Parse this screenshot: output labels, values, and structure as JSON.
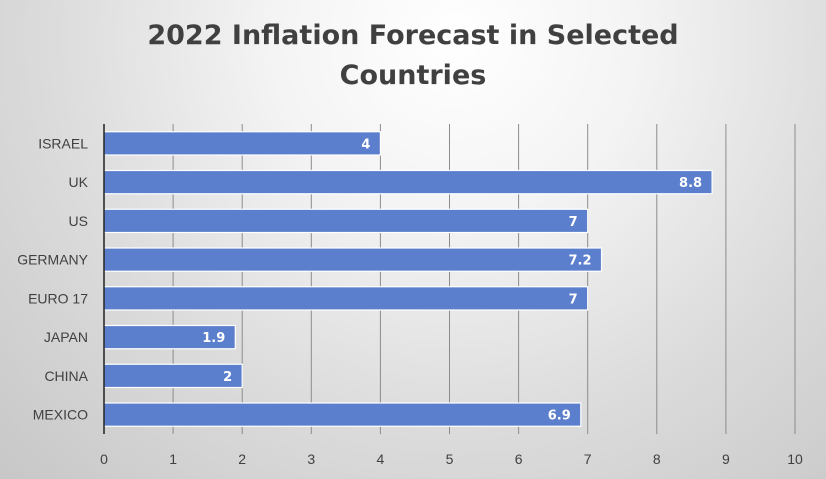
{
  "chart_data": {
    "type": "bar",
    "orientation": "horizontal",
    "title": "2022 Inflation Forecast in Selected Countries",
    "title_lines": [
      "2022 Inflation Forecast in Selected",
      "Countries"
    ],
    "categories": [
      "ISRAEL",
      "UK",
      "US",
      "GERMANY",
      "EURO 17",
      "JAPAN",
      "CHINA",
      "MEXICO"
    ],
    "values": [
      4,
      8.8,
      7,
      7.2,
      7,
      1.9,
      2,
      6.9
    ],
    "value_labels": [
      "4",
      "8.8",
      "7",
      "7.2",
      "7",
      "1.9",
      "2",
      "6.9"
    ],
    "xlim": [
      0,
      10
    ],
    "xticks": [
      "0",
      "1",
      "2",
      "3",
      "4",
      "5",
      "6",
      "7",
      "8",
      "9",
      "10"
    ],
    "xlabel": "",
    "ylabel": "",
    "grid": true,
    "legend": "none",
    "bar_color": "#5b7fcc",
    "bar_edge_color": "#ffffff",
    "data_label_color": "#ffffff",
    "gridline_color": "#8c8c8c",
    "axis_color": "#202020"
  }
}
